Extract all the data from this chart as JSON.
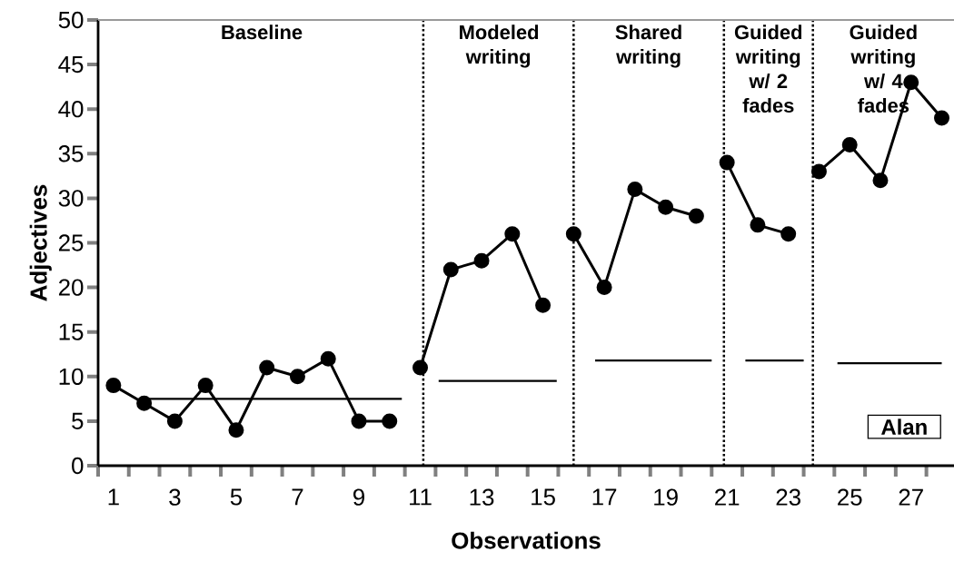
{
  "chart_data": {
    "type": "line",
    "xlabel": "Observations",
    "ylabel": "Adjectives",
    "xlim": [
      0.5,
      28.4
    ],
    "ylim": [
      0,
      50
    ],
    "xticks": [
      {
        "value": 0.5,
        "label": null
      },
      1,
      {
        "value": 1.5,
        "label": null
      },
      {
        "value": 2.5,
        "label": null
      },
      3,
      {
        "value": 3.5,
        "label": null
      },
      {
        "value": 4.5,
        "label": null
      },
      5,
      {
        "value": 5.5,
        "label": null
      },
      {
        "value": 6.5,
        "label": null
      },
      7,
      {
        "value": 7.5,
        "label": null
      },
      {
        "value": 8.5,
        "label": null
      },
      9,
      {
        "value": 9.5,
        "label": null
      },
      {
        "value": 10.5,
        "label": null
      },
      11,
      {
        "value": 11.5,
        "label": null
      },
      {
        "value": 12.5,
        "label": null
      },
      13,
      {
        "value": 13.5,
        "label": null
      },
      {
        "value": 14.5,
        "label": null
      },
      15,
      {
        "value": 15.5,
        "label": null
      },
      {
        "value": 16.5,
        "label": null
      },
      17,
      {
        "value": 17.5,
        "label": null
      },
      {
        "value": 18.5,
        "label": null
      },
      19,
      {
        "value": 19.5,
        "label": null
      },
      {
        "value": 20.5,
        "label": null
      },
      21,
      {
        "value": 21.5,
        "label": null
      },
      {
        "value": 22.5,
        "label": null
      },
      23,
      {
        "value": 23.5,
        "label": null
      },
      {
        "value": 24.5,
        "label": null
      },
      25,
      {
        "value": 25.5,
        "label": null
      },
      {
        "value": 26.5,
        "label": null
      },
      27,
      {
        "value": 27.5,
        "label": null
      }
    ],
    "yticks": [
      0,
      5,
      10,
      15,
      20,
      25,
      30,
      35,
      40,
      45,
      50
    ],
    "series": [
      {
        "x": [
          1,
          2,
          3,
          4,
          5,
          6,
          7,
          8,
          9,
          10
        ],
        "values": [
          9,
          7,
          5,
          9,
          4,
          11,
          10,
          12,
          5,
          5
        ],
        "color": "#000000",
        "marker": "circle"
      },
      {
        "x": [
          11,
          12,
          13,
          14,
          15
        ],
        "values": [
          11,
          22,
          23,
          26,
          18
        ],
        "color": "#000000",
        "marker": "circle"
      },
      {
        "x": [
          16,
          17,
          18,
          19,
          20
        ],
        "values": [
          26,
          20,
          31,
          29,
          28
        ],
        "color": "#000000",
        "marker": "circle"
      },
      {
        "x": [
          21,
          22,
          23
        ],
        "values": [
          34,
          27,
          26
        ],
        "color": "#000000",
        "marker": "circle"
      },
      {
        "x": [
          24,
          25,
          26,
          27,
          28
        ],
        "values": [
          33,
          36,
          32,
          43,
          39
        ],
        "color": "#000000",
        "marker": "circle"
      },
      {
        "x": [
          1.9,
          10.4
        ],
        "values": [
          7.5,
          7.5
        ],
        "color": "#000000",
        "marker": "none"
      },
      {
        "x": [
          11.6,
          15.45
        ],
        "values": [
          9.5,
          9.5
        ],
        "color": "#000000",
        "marker": "none"
      },
      {
        "x": [
          16.7,
          20.5
        ],
        "values": [
          11.8,
          11.8
        ],
        "color": "#000000",
        "marker": "none"
      },
      {
        "x": [
          21.6,
          23.5
        ],
        "values": [
          11.8,
          11.8
        ],
        "color": "#000000",
        "marker": "none"
      },
      {
        "x": [
          24.6,
          28.0
        ],
        "values": [
          11.5,
          11.5
        ],
        "color": "#000000",
        "marker": "none"
      }
    ],
    "ref_lines": [
      {
        "axis": "x",
        "value": 11.1,
        "line_style": "dotted",
        "color": "#000000"
      },
      {
        "axis": "x",
        "value": 16,
        "line_style": "dotted",
        "color": "#000000"
      },
      {
        "axis": "x",
        "value": 20.9,
        "line_style": "dotted",
        "color": "#000000"
      },
      {
        "axis": "x",
        "value": 23.8,
        "line_style": "dotted",
        "color": "#000000"
      },
      {
        "axis": "y",
        "value": 50,
        "line_style": "solid",
        "color": "#999999"
      }
    ],
    "annotations": [
      "Baseline",
      "Modeled writing",
      "Shared writing",
      "Guided writing w/ 2 fades",
      "Guided writing w/ 4 fades",
      "Alan"
    ]
  }
}
